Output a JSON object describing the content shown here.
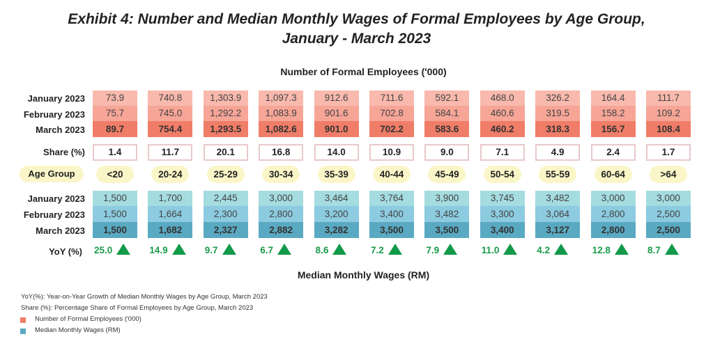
{
  "title_line1": "Exhibit 4: Number and Median Monthly Wages of Formal Employees by Age Group,",
  "title_line2": "January - March 2023",
  "colors": {
    "emp_jan": "#f9b9ad",
    "emp_feb": "#f6a597",
    "emp_mar": "#f07d68",
    "wage_jan": "#a5dce0",
    "wage_feb": "#8ccbe0",
    "wage_mar": "#5aa9c2",
    "pill": "#fbf6c8",
    "green": "#12994a"
  },
  "chart_data": {
    "type": "table",
    "title": "Exhibit 4: Number and Median Monthly Wages of Formal Employees by Age Group, January - March 2023",
    "employees_title": "Number of Formal Employees ('000)",
    "wages_title": "Median Monthly Wages (RM)",
    "row_labels": {
      "jan": "January 2023",
      "feb": "February 2023",
      "mar": "March 2023",
      "share": "Share (%)",
      "age": "Age Group",
      "yoy": "YoY (%)"
    },
    "age_groups": [
      "<20",
      "20-24",
      "25-29",
      "30-34",
      "35-39",
      "40-44",
      "45-49",
      "50-54",
      "55-59",
      "60-64",
      ">64"
    ],
    "employees": {
      "jan": [
        "73.9",
        "740.8",
        "1,303.9",
        "1,097.3",
        "912.6",
        "711.6",
        "592.1",
        "468.0",
        "326.2",
        "164.4",
        "111.7"
      ],
      "feb": [
        "75.7",
        "745.0",
        "1,292.2",
        "1,083.9",
        "901.6",
        "702.8",
        "584.1",
        "460.6",
        "319.5",
        "158.2",
        "109.2"
      ],
      "mar": [
        "89.7",
        "754.4",
        "1,293.5",
        "1,082.6",
        "901.0",
        "702.2",
        "583.6",
        "460.2",
        "318.3",
        "156.7",
        "108.4"
      ]
    },
    "share": [
      "1.4",
      "11.7",
      "20.1",
      "16.8",
      "14.0",
      "10.9",
      "9.0",
      "7.1",
      "4.9",
      "2.4",
      "1.7"
    ],
    "wages": {
      "jan": [
        "1,500",
        "1,700",
        "2,445",
        "3,000",
        "3,464",
        "3,764",
        "3,900",
        "3,745",
        "3,482",
        "3,000",
        "3,000"
      ],
      "feb": [
        "1,500",
        "1,664",
        "2,300",
        "2,800",
        "3,200",
        "3,400",
        "3,482",
        "3,300",
        "3,064",
        "2,800",
        "2,500"
      ],
      "mar": [
        "1,500",
        "1,682",
        "2,327",
        "2,882",
        "3,282",
        "3,500",
        "3,500",
        "3,400",
        "3,127",
        "2,800",
        "2,500"
      ]
    },
    "yoy": [
      "25.0",
      "14.9",
      "9.7",
      "6.7",
      "8.6",
      "7.2",
      "7.9",
      "11.0",
      "4.2",
      "12.8",
      "8.7"
    ]
  },
  "notes": {
    "yoy": "YoY(%): Year-on-Year Growth of Median Monthly Wages by Age Group, March 2023",
    "share": "Share (%): Percentage Share of Formal Employees by Age Group, March 2023",
    "legend_employees": "Number of Formal Employees ('000)",
    "legend_wages": "Median Monthly Wages (RM)"
  }
}
